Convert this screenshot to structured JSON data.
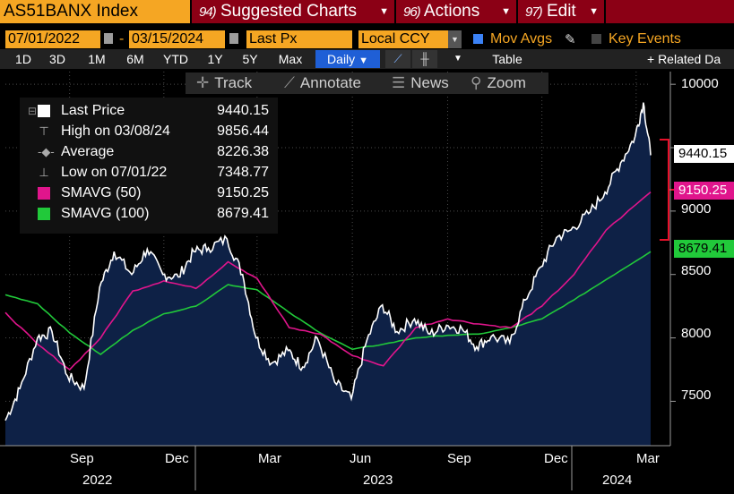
{
  "command_bar": {
    "ticker": "AS51BANX Index",
    "suggested_num": "94)",
    "suggested_label": "Suggested Charts",
    "actions_num": "96)",
    "actions_label": "Actions",
    "edit_num": "97)",
    "edit_label": "Edit"
  },
  "settings_bar": {
    "start_date": "07/01/2022",
    "end_date": "03/15/2024",
    "field": "Last Px",
    "currency": "Local CCY",
    "mov_avgs_label": "Mov Avgs",
    "key_events_label": "Key Events"
  },
  "range_toolbar": {
    "ranges": [
      "1D",
      "3D",
      "1M",
      "6M",
      "YTD",
      "1Y",
      "5Y",
      "Max"
    ],
    "frequency": "Daily",
    "table_label": "Table",
    "related_label": "+ Related Da"
  },
  "chart_tools": {
    "track": "Track",
    "annotate": "Annotate",
    "news": "News",
    "zoom": "Zoom"
  },
  "legend": [
    {
      "name": "Last Price",
      "value": "9440.15",
      "color": "#ffffff"
    },
    {
      "name": "High on 03/08/24",
      "value": "9856.44"
    },
    {
      "name": "Average",
      "value": "8226.38"
    },
    {
      "name": "Low on 07/01/22",
      "value": "7348.77"
    },
    {
      "name": "SMAVG (50)",
      "value": "9150.25",
      "color": "#e0158c"
    },
    {
      "name": "SMAVG (100)",
      "value": "8679.41",
      "color": "#21c93a"
    }
  ],
  "price_tags": {
    "last": "9440.15",
    "sma50": "9150.25",
    "sma100": "8679.41"
  },
  "chart_data": {
    "type": "area",
    "ylim": [
      7150,
      10100
    ],
    "y_ticks": [
      "10000",
      "9000",
      "8500",
      "8000",
      "7500"
    ],
    "x_month_labels": [
      "Sep",
      "Dec",
      "Mar",
      "Jun",
      "Sep",
      "Dec",
      "Mar"
    ],
    "x_year_labels": [
      "2022",
      "2023",
      "2024"
    ],
    "colors": {
      "price": "#ffffff",
      "area": "#0e2146",
      "sma50": "#e0158c",
      "sma100": "#21c93a",
      "range_bracket": "#e8102a"
    },
    "series": [
      {
        "name": "Last Price",
        "x": [
          "2022-07-01",
          "2022-07-15",
          "2022-08-01",
          "2022-08-15",
          "2022-08-30",
          "2022-09-15",
          "2022-09-30",
          "2022-10-14",
          "2022-10-31",
          "2022-11-15",
          "2022-11-30",
          "2022-12-15",
          "2022-12-30",
          "2023-01-13",
          "2023-01-31",
          "2023-02-15",
          "2023-02-28",
          "2023-03-15",
          "2023-03-31",
          "2023-04-14",
          "2023-04-28",
          "2023-05-15",
          "2023-05-31",
          "2023-06-15",
          "2023-06-30",
          "2023-07-14",
          "2023-07-31",
          "2023-08-15",
          "2023-08-31",
          "2023-09-15",
          "2023-09-29",
          "2023-10-13",
          "2023-10-31",
          "2023-11-15",
          "2023-11-30",
          "2023-12-15",
          "2023-12-29",
          "2024-01-15",
          "2024-01-31",
          "2024-02-15",
          "2024-02-29",
          "2024-03-08",
          "2024-03-15"
        ],
        "values": [
          7349,
          7600,
          8000,
          8050,
          7700,
          7600,
          8400,
          8680,
          8500,
          8700,
          8500,
          8480,
          8680,
          8710,
          8780,
          8500,
          8000,
          7800,
          7900,
          7770,
          8000,
          7650,
          7520,
          7980,
          8260,
          8050,
          8150,
          8030,
          8100,
          8070,
          7930,
          8010,
          7960,
          8300,
          8560,
          8790,
          8850,
          8980,
          9150,
          9380,
          9590,
          9856,
          9440
        ]
      },
      {
        "name": "SMAVG (50)",
        "x": [
          "2022-07-01",
          "2022-08-01",
          "2022-09-01",
          "2022-10-01",
          "2022-11-01",
          "2022-12-01",
          "2023-01-01",
          "2023-02-01",
          "2023-03-01",
          "2023-04-01",
          "2023-05-01",
          "2023-06-01",
          "2023-07-01",
          "2023-08-01",
          "2023-09-01",
          "2023-10-01",
          "2023-11-01",
          "2023-12-01",
          "2024-01-01",
          "2024-02-01",
          "2024-03-15"
        ],
        "values": [
          8200,
          7950,
          7750,
          8000,
          8370,
          8450,
          8390,
          8600,
          8470,
          8080,
          8030,
          7860,
          7780,
          8080,
          8150,
          8110,
          8080,
          8250,
          8500,
          8850,
          9150
        ]
      },
      {
        "name": "SMAVG (100)",
        "x": [
          "2022-07-01",
          "2022-08-01",
          "2022-09-01",
          "2022-10-01",
          "2022-11-01",
          "2022-12-01",
          "2023-01-01",
          "2023-02-01",
          "2023-03-01",
          "2023-04-01",
          "2023-05-01",
          "2023-06-01",
          "2023-07-01",
          "2023-08-01",
          "2023-09-01",
          "2023-10-01",
          "2023-11-01",
          "2023-12-01",
          "2024-01-01",
          "2024-02-01",
          "2024-03-15"
        ],
        "values": [
          8340,
          8270,
          8040,
          7870,
          8060,
          8190,
          8250,
          8420,
          8380,
          8200,
          8040,
          7910,
          7950,
          8000,
          8020,
          8030,
          8080,
          8150,
          8300,
          8460,
          8680
        ]
      }
    ]
  }
}
